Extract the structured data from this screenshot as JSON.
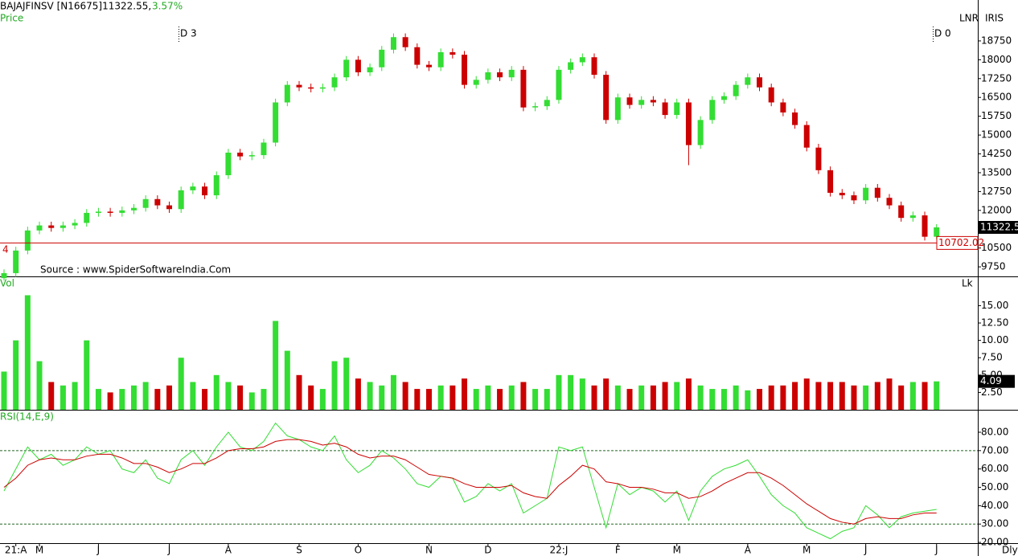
{
  "chart_data": [
    {
      "type": "candlestick",
      "title": "BAJAJFINSV [N16675]11322.55,",
      "change": "3.57%",
      "subtitle": "Price",
      "unit_labels": [
        "LNR",
        "IRIS"
      ],
      "source": "Source : www.SpiderSoftwareIndia.Com",
      "side_label": "4",
      "markers": [
        "D 3",
        "D 0"
      ],
      "up_color": "#33dd33",
      "down_color": "#cc0000",
      "open": [
        9300,
        9500,
        10400,
        11200,
        11400,
        11300,
        11400,
        11500,
        11900,
        11950,
        11900,
        12000,
        12100,
        12450,
        12200,
        12050,
        12800,
        12950,
        12600,
        13400,
        14300,
        14150,
        14200,
        14700,
        16300,
        17000,
        16900,
        16850,
        16900,
        17300,
        18000,
        17500,
        17700,
        18400,
        18900,
        18500,
        17800,
        17700,
        18300,
        18200,
        17000,
        17200,
        17500,
        17300,
        17600,
        16100,
        16150,
        16400,
        17600,
        17900,
        18100,
        17400,
        15600,
        16500,
        16200,
        16400,
        16300,
        15800,
        16300,
        14600,
        15600,
        16400,
        16550,
        17000,
        17300,
        16900,
        16300,
        15900,
        15400,
        14500,
        13600,
        12700,
        12600,
        12400,
        12900,
        12500,
        12200,
        11700,
        11800,
        10950
      ],
      "high": [
        9650,
        10550,
        11350,
        11550,
        11550,
        11550,
        11650,
        12050,
        12100,
        12100,
        12150,
        12250,
        12600,
        12600,
        12350,
        12950,
        13100,
        13100,
        13550,
        14450,
        14450,
        14350,
        14850,
        16450,
        17150,
        17150,
        17050,
        17050,
        17450,
        18150,
        18150,
        17850,
        18550,
        19050,
        19050,
        18650,
        17950,
        18450,
        18450,
        18350,
        17350,
        17650,
        17650,
        17750,
        17750,
        16300,
        16550,
        17750,
        18050,
        18250,
        18250,
        17550,
        16650,
        16650,
        16550,
        16550,
        16450,
        16450,
        16450,
        15750,
        16550,
        16700,
        17150,
        17450,
        17450,
        17050,
        16450,
        16050,
        15550,
        14650,
        13750,
        12850,
        12750,
        13050,
        13050,
        12650,
        12350,
        11950,
        11950,
        11450
      ],
      "low": [
        9200,
        9350,
        10250,
        11050,
        11150,
        11150,
        11250,
        11350,
        11750,
        11750,
        11750,
        11850,
        11950,
        12050,
        11900,
        11900,
        12650,
        12450,
        12450,
        13250,
        14000,
        14000,
        14050,
        14550,
        16150,
        16750,
        16700,
        16700,
        16750,
        17150,
        17350,
        17350,
        17550,
        18250,
        18350,
        17650,
        17550,
        17550,
        18050,
        16850,
        16850,
        17050,
        17150,
        17150,
        15950,
        15950,
        16000,
        16250,
        17450,
        17750,
        17250,
        15450,
        15450,
        16050,
        16050,
        16150,
        15650,
        15650,
        13800,
        14450,
        15450,
        16250,
        16400,
        16850,
        16750,
        16150,
        15750,
        15250,
        14350,
        13450,
        12550,
        12450,
        12250,
        12250,
        12350,
        12050,
        11550,
        11550,
        10800,
        10850
      ],
      "close": [
        9500,
        10400,
        11200,
        11400,
        11300,
        11400,
        11500,
        11900,
        11950,
        11900,
        12000,
        12100,
        12450,
        12200,
        12050,
        12800,
        12950,
        12600,
        13400,
        14300,
        14150,
        14200,
        14700,
        16300,
        17000,
        16900,
        16850,
        16900,
        17300,
        18000,
        17500,
        17700,
        18400,
        18900,
        18500,
        17800,
        17700,
        18300,
        18200,
        17000,
        17200,
        17500,
        17300,
        17600,
        16100,
        16150,
        16400,
        17600,
        17900,
        18100,
        17400,
        15600,
        16500,
        16200,
        16400,
        16300,
        15800,
        16300,
        14600,
        15600,
        16400,
        16550,
        17000,
        17300,
        16900,
        16300,
        15900,
        15400,
        14500,
        13600,
        12700,
        12600,
        12400,
        12900,
        12500,
        12200,
        11700,
        11800,
        10950,
        11322.55
      ],
      "ylim": [
        9370,
        20380
      ],
      "yticks": [
        9750,
        10500,
        11250,
        12000,
        12750,
        13500,
        14250,
        15000,
        15750,
        16500,
        17250,
        18000,
        18750
      ],
      "hline": 10702.02,
      "last_price": 11322.5
    },
    {
      "type": "bar",
      "title": "Vol",
      "unit": "Lk",
      "values": [
        5.5,
        10,
        16.5,
        7,
        4,
        3.5,
        4,
        10,
        3,
        2.5,
        3,
        3.5,
        4,
        3,
        3.5,
        7.5,
        4,
        3,
        5,
        4,
        3.5,
        2.5,
        3,
        12.8,
        8.5,
        5,
        3.5,
        3,
        7,
        7.5,
        4.5,
        4,
        3.5,
        5,
        4,
        3,
        3,
        3.5,
        3.5,
        4.5,
        3,
        3.5,
        3,
        3.5,
        4,
        3,
        3,
        5,
        5,
        4.5,
        3.5,
        4.5,
        3.5,
        3,
        3.5,
        3.5,
        4,
        4,
        4.5,
        3.5,
        3,
        3,
        3.5,
        2.8,
        3,
        3.5,
        3.5,
        4,
        4.5,
        4,
        4,
        4,
        3.5,
        3.5,
        4,
        4.5,
        3.5,
        4,
        4,
        4.09
      ],
      "ylim": [
        0,
        19.1
      ],
      "yticks": [
        {
          "value": 2.5,
          "label": "2.50"
        },
        {
          "value": 5,
          "label": "5.00"
        },
        {
          "value": 7.5,
          "label": "7.50"
        },
        {
          "value": 10,
          "label": "10.00"
        },
        {
          "value": 12.5,
          "label": "12.50"
        },
        {
          "value": 15,
          "label": "15.00"
        }
      ],
      "last_value": 4.09
    },
    {
      "type": "line",
      "title": "RSI(14,E,9)",
      "x_unit": "Dly",
      "categories": [
        null,
        "21:A",
        null,
        "M",
        null,
        null,
        null,
        null,
        "J",
        null,
        null,
        null,
        null,
        null,
        "J",
        null,
        null,
        null,
        null,
        "A",
        null,
        null,
        null,
        null,
        null,
        "S",
        null,
        null,
        null,
        null,
        "O",
        null,
        null,
        null,
        null,
        null,
        "N",
        null,
        null,
        null,
        null,
        "D",
        null,
        null,
        null,
        null,
        null,
        "22:J",
        null,
        null,
        null,
        null,
        "F",
        null,
        null,
        null,
        null,
        "M",
        null,
        null,
        null,
        null,
        null,
        "A",
        null,
        null,
        null,
        null,
        "M",
        null,
        null,
        null,
        null,
        "J",
        null,
        null,
        null,
        null,
        null,
        "J"
      ],
      "series": [
        {
          "color": "#33dd33",
          "values": [
            48,
            60,
            72,
            65,
            68,
            62,
            65,
            72,
            68,
            70,
            60,
            58,
            65,
            55,
            52,
            65,
            70,
            62,
            72,
            80,
            72,
            70,
            75,
            85,
            78,
            76,
            72,
            70,
            78,
            65,
            58,
            62,
            70,
            66,
            60,
            52,
            50,
            56,
            55,
            42,
            45,
            52,
            48,
            52,
            36,
            40,
            44,
            72,
            70,
            72,
            50,
            28,
            52,
            46,
            50,
            48,
            42,
            48,
            32,
            48,
            56,
            60,
            62,
            65,
            56,
            46,
            40,
            36,
            28,
            25,
            22,
            26,
            28,
            40,
            35,
            28,
            34,
            36,
            37,
            38
          ]
        },
        {
          "color": "#cc0000",
          "values": [
            50,
            55,
            62,
            65,
            66,
            65,
            65,
            67,
            68,
            68,
            66,
            63,
            63,
            61,
            58,
            60,
            63,
            63,
            66,
            70,
            71,
            71,
            72,
            75,
            76,
            76,
            75,
            73,
            74,
            72,
            68,
            66,
            67,
            67,
            65,
            61,
            57,
            56,
            55,
            52,
            50,
            50,
            50,
            51,
            47,
            45,
            44,
            51,
            56,
            62,
            60,
            53,
            52,
            50,
            50,
            49,
            47,
            47,
            44,
            45,
            48,
            52,
            55,
            58,
            58,
            55,
            51,
            46,
            41,
            37,
            33,
            31,
            30,
            33,
            34,
            33,
            33,
            35,
            36,
            36
          ]
        }
      ],
      "ylim": [
        19.6,
        91.8
      ],
      "yticks": [
        {
          "value": 20,
          "label": "20.00"
        },
        {
          "value": 30,
          "label": "30.00"
        },
        {
          "value": 40,
          "label": "40.00"
        },
        {
          "value": 50,
          "label": "50.00"
        },
        {
          "value": 60,
          "label": "60.00"
        },
        {
          "value": 70,
          "label": "70.00"
        },
        {
          "value": 80,
          "label": "80.00"
        }
      ],
      "ref_lines": [
        30,
        70
      ]
    }
  ]
}
